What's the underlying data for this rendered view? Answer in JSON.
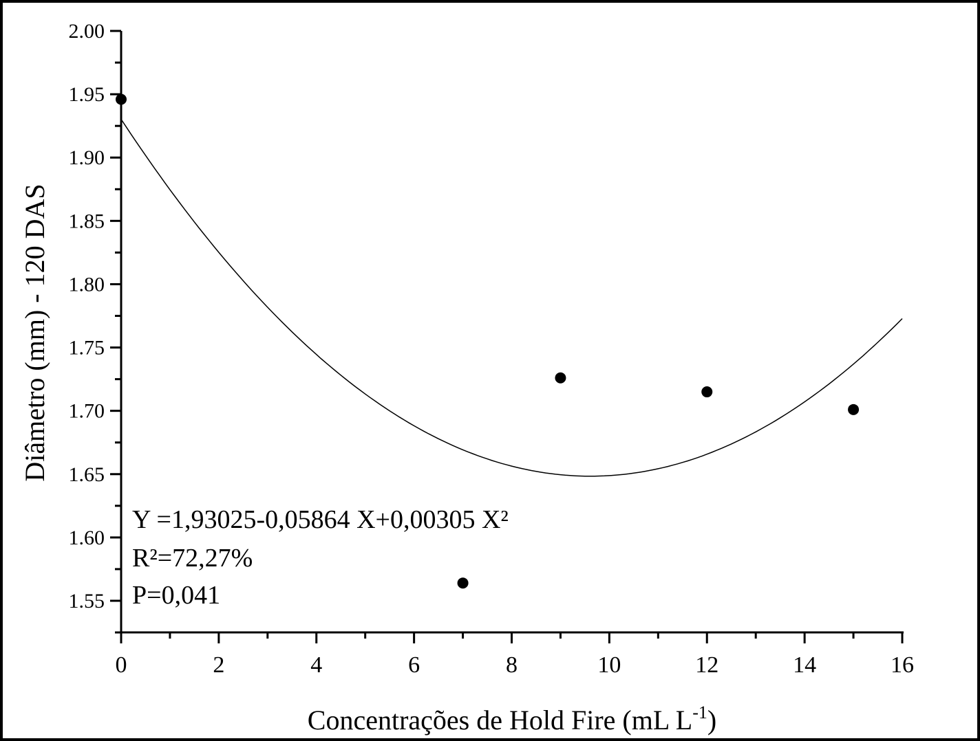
{
  "chart_data": {
    "type": "scatter",
    "title": "",
    "xlabel": "Concentrações de Hold Fire (mL L",
    "xlabel_superscript": "-1",
    "xlabel_suffix": ")",
    "ylabel": "Diâmetro (mm) - 120 DAS",
    "xlim": [
      0,
      16
    ],
    "ylim": [
      1.525,
      2.0
    ],
    "xticks": [
      "0",
      "2",
      "4",
      "6",
      "8",
      "10",
      "12",
      "14",
      "16"
    ],
    "yticks": [
      "1.55",
      "1.60",
      "1.65",
      "1.70",
      "1.75",
      "1.80",
      "1.85",
      "1.90",
      "1.95",
      "2.00"
    ],
    "grid": false,
    "points": [
      {
        "x": 0,
        "y": 1.946
      },
      {
        "x": 7,
        "y": 1.564
      },
      {
        "x": 9,
        "y": 1.726
      },
      {
        "x": 12,
        "y": 1.715
      },
      {
        "x": 15,
        "y": 1.701
      }
    ],
    "fit": {
      "type": "quadratic",
      "a": 1.93025,
      "b": -0.05864,
      "c": 0.00305,
      "x_range": [
        0,
        16
      ]
    },
    "annotations": [
      "Y =1,93025-0,05864 X+0,00305 X²",
      "R²=72,27%",
      "P=0,041"
    ]
  }
}
